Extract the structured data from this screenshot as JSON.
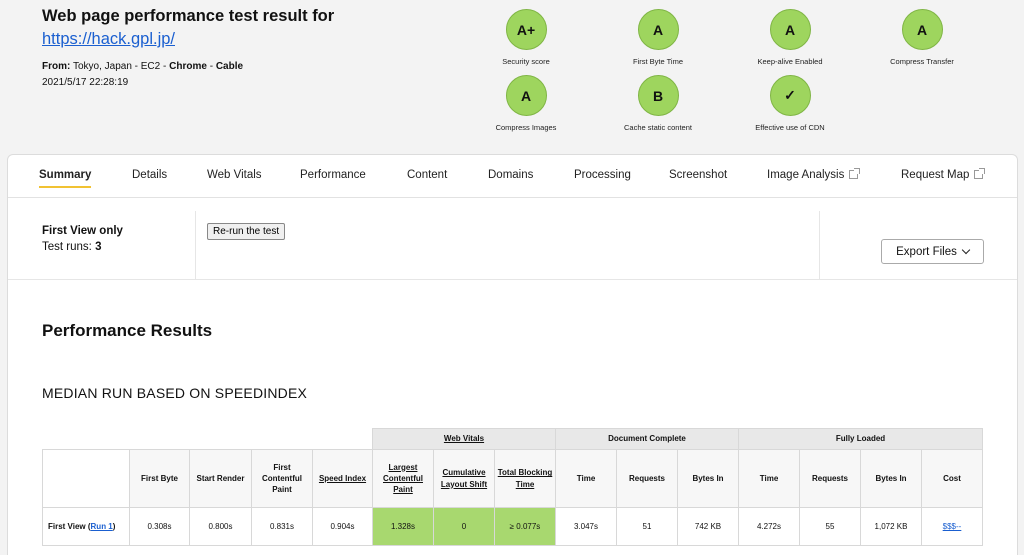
{
  "header": {
    "title": "Web page performance test result for",
    "url": "https://hack.gpl.jp/",
    "from_prefix": "From:",
    "from_location": "Tokyo, Japan - EC2 -",
    "browser": "Chrome",
    "separator": "-",
    "connection": "Cable",
    "date": "2021/5/17 22:28:19"
  },
  "grades": [
    {
      "grade": "A+",
      "label": "Security score"
    },
    {
      "grade": "A",
      "label": "First Byte Time"
    },
    {
      "grade": "A",
      "label": "Keep-alive Enabled"
    },
    {
      "grade": "A",
      "label": "Compress Transfer"
    },
    {
      "grade": "A",
      "label": "Compress Images"
    },
    {
      "grade": "B",
      "label": "Cache static content"
    },
    {
      "grade": "✓",
      "label": "Effective use of CDN"
    }
  ],
  "tabs": [
    "Summary",
    "Details",
    "Web Vitals",
    "Performance",
    "Content",
    "Domains",
    "Processing",
    "Screenshot",
    "Image Analysis",
    "Request Map"
  ],
  "info": {
    "first_view_only": "First View only",
    "test_runs_label": "Test runs:",
    "test_runs_value": "3",
    "rerun_label": "Re-run the test",
    "export_label": "Export Files"
  },
  "results": {
    "title": "Performance Results",
    "median_label": "MEDIAN RUN BASED ON SPEEDINDEX",
    "groups": {
      "web_vitals": "Web Vitals",
      "document_complete": "Document Complete",
      "fully_loaded": "Fully Loaded"
    },
    "columns": [
      "First Byte",
      "Start Render",
      "First Contentful Paint",
      "Speed Index",
      "Largest Contentful Paint",
      "Cumulative Layout Shift",
      "Total Blocking Time",
      "Time",
      "Requests",
      "Bytes In",
      "Time",
      "Requests",
      "Bytes In",
      "Cost"
    ],
    "row": {
      "label": "First View (",
      "run_link": "Run 1",
      "label_end": ")",
      "values": [
        "0.308s",
        "0.800s",
        "0.831s",
        "0.904s",
        "1.328s",
        "0",
        "≥ 0.077s",
        "3.047s",
        "51",
        "742 KB",
        "4.272s",
        "55",
        "1,072 KB",
        "$$$--"
      ]
    }
  }
}
